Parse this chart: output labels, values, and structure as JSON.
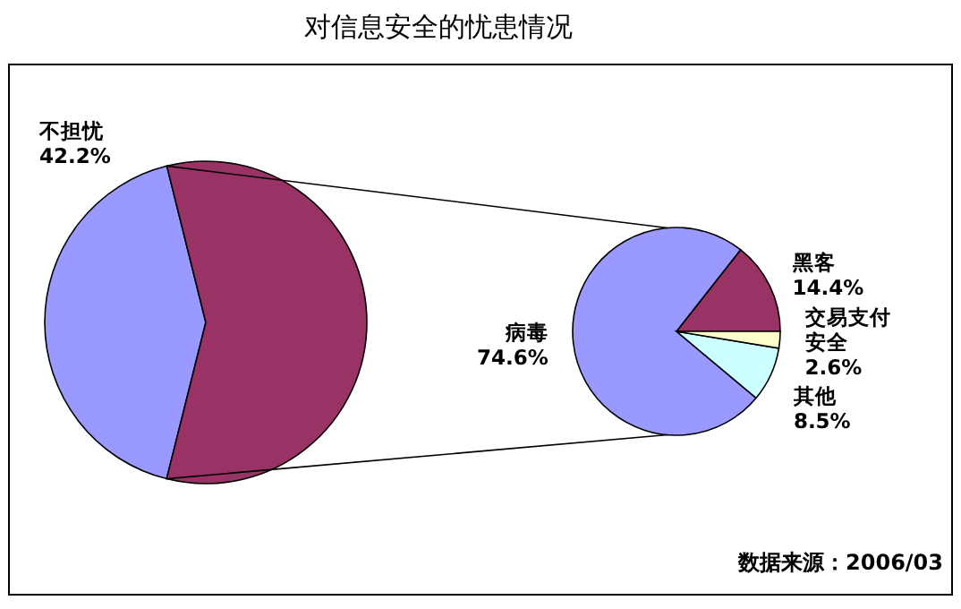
{
  "chart_data": [
    {
      "type": "pie",
      "title": "对信息安全的忧患情况",
      "categories": [
        "不担忧",
        null
      ],
      "values": [
        42.2,
        57.8
      ],
      "colors": [
        "#9999ff",
        "#993366"
      ],
      "value_labels": [
        "42.2%",
        null
      ]
    },
    {
      "type": "pie",
      "categories": [
        "黑客",
        "病毒",
        "其他",
        "交易支付安全"
      ],
      "values": [
        14.4,
        74.6,
        8.5,
        2.6
      ],
      "colors": [
        "#993366",
        "#9999ff",
        "#ccffff",
        "#ffffcc"
      ],
      "value_labels": [
        "14.4%",
        "74.6%",
        "8.5%",
        "2.6%"
      ],
      "annotations": [
        "数据来源：2006/03"
      ]
    }
  ]
}
